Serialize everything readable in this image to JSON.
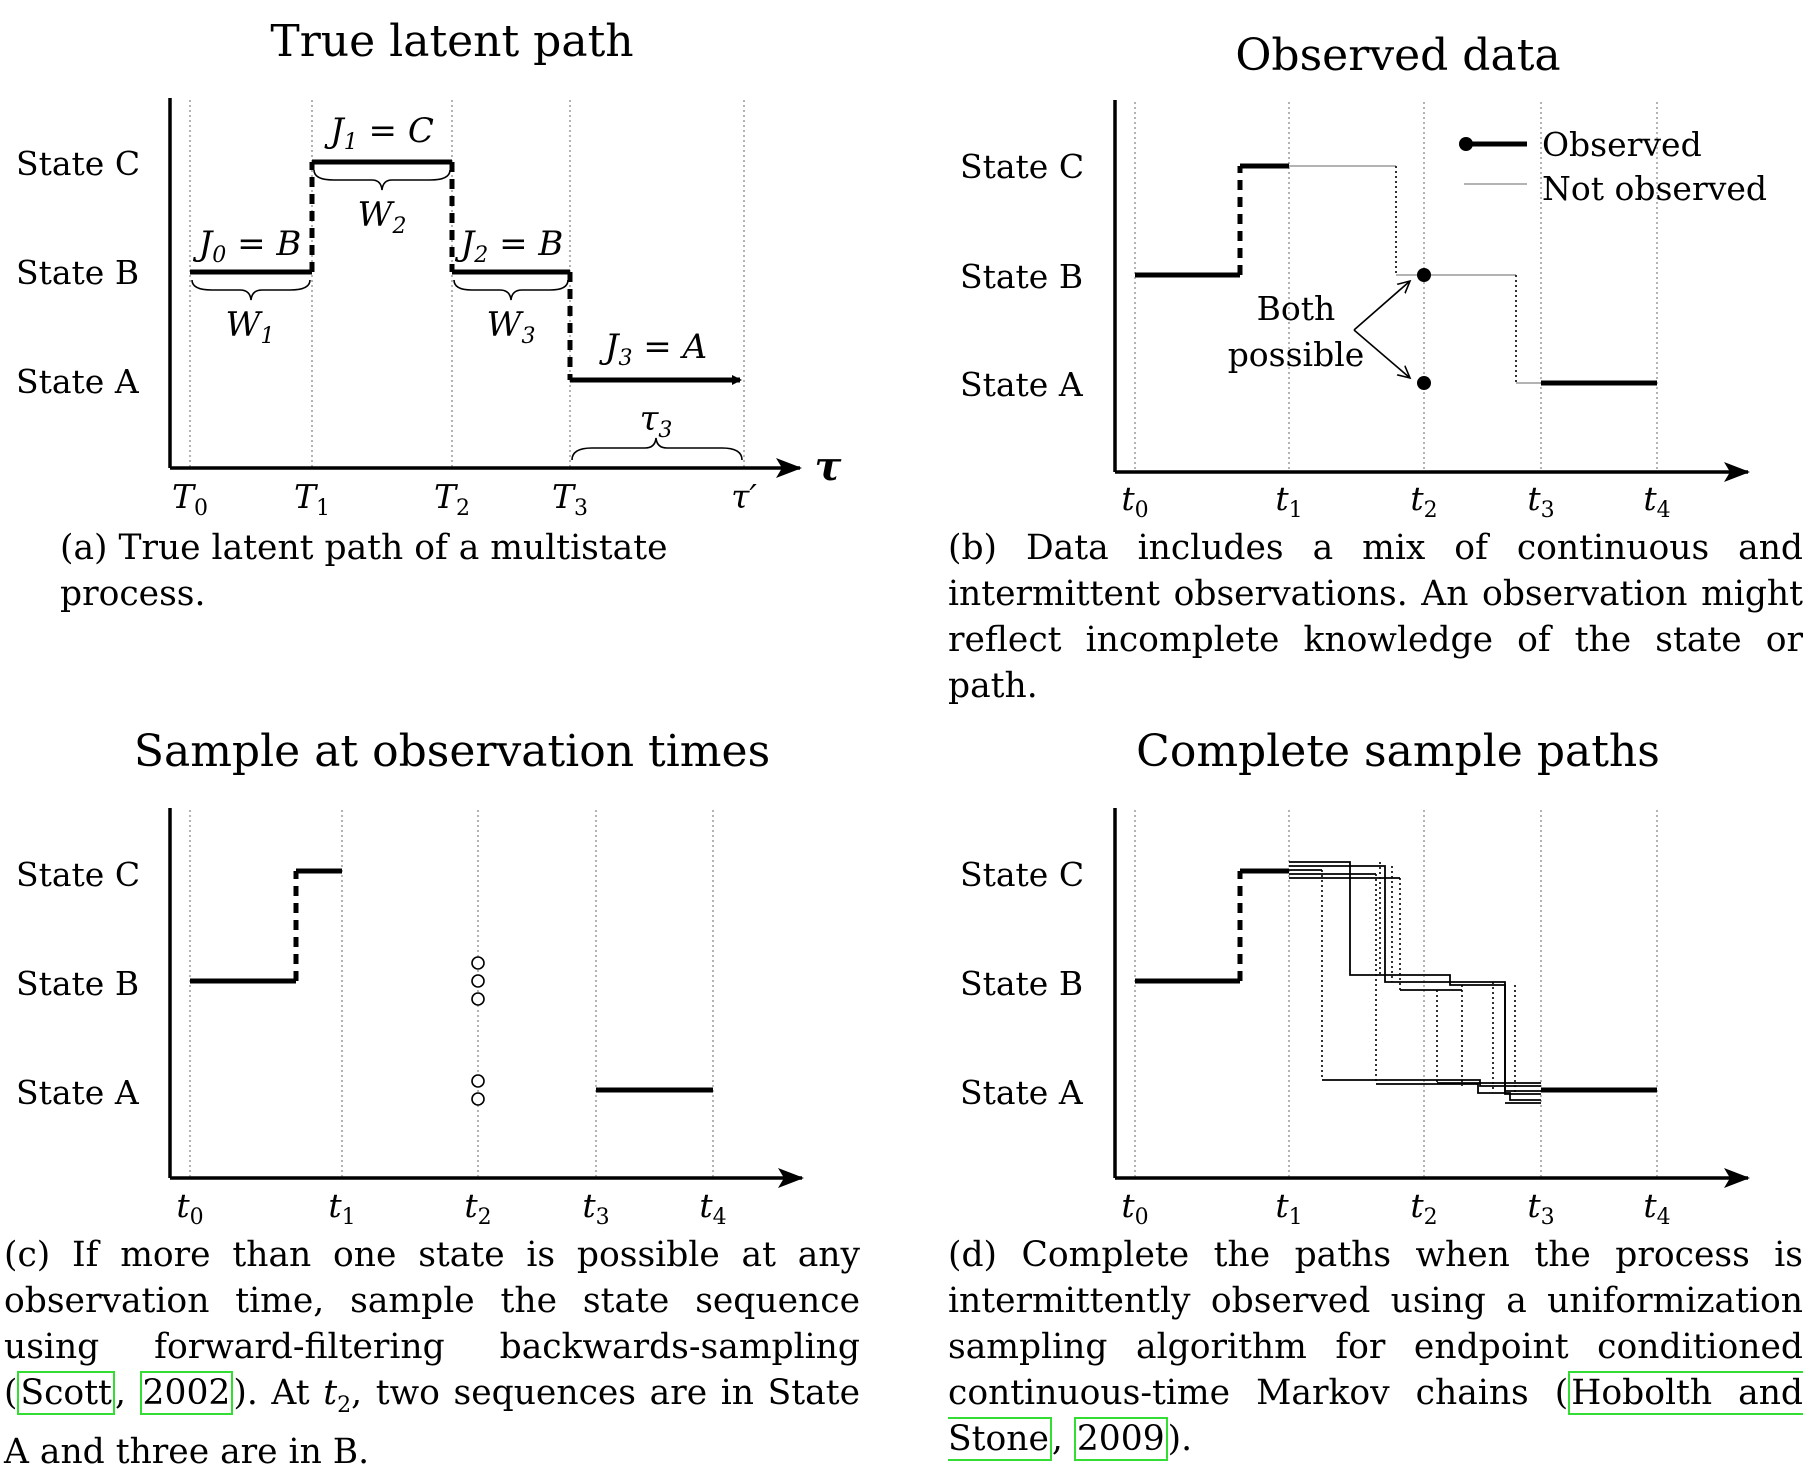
{
  "panel_a": {
    "title": "True latent path",
    "states": [
      "State C",
      "State B",
      "State A"
    ],
    "ticks": [
      "T0",
      "T1",
      "T2",
      "T3",
      "τ′"
    ],
    "axis_symbol": "τ",
    "labels": {
      "j0_main": "J",
      "j0_sub": "0",
      "j0_rest": " = B",
      "j1_main": "J",
      "j1_sub": "1",
      "j1_rest": " = C",
      "j2_main": "J",
      "j2_sub": "2",
      "j2_rest": " = B",
      "j3_main": "J",
      "j3_sub": "3",
      "j3_rest": " = A",
      "w1_main": "W",
      "w1_sub": "1",
      "w2_main": "W",
      "w2_sub": "2",
      "w3_main": "W",
      "w3_sub": "3",
      "tau3_main": "τ",
      "tau3_sub": "3"
    },
    "caption": "(a) True latent path of a multistate process."
  },
  "panel_b": {
    "title": "Observed data",
    "states": [
      "State C",
      "State B",
      "State A"
    ],
    "ticks": [
      "t0",
      "t1",
      "t2",
      "t3",
      "t4"
    ],
    "legend": {
      "observed": "Observed",
      "not_observed": "Not observed"
    },
    "annotation": [
      "Both",
      "possible"
    ],
    "caption": "(b) Data includes a mix of continuous and intermittent observations. An observation might reflect incomplete knowledge of the state or path."
  },
  "panel_c": {
    "title": "Sample at observation times",
    "states": [
      "State C",
      "State B",
      "State A"
    ],
    "ticks": [
      "t0",
      "t1",
      "t2",
      "t3",
      "t4"
    ],
    "samples_at_t2": {
      "State B": 3,
      "State A": 2
    },
    "caption_pre": "(c) If more than one state is possible at any observation time, sample the state sequence using forward-filtering backwards-sampling (",
    "cite_author": "Scott",
    "cite_sep": ", ",
    "cite_year": "2002",
    "caption_mid": "). At ",
    "caption_var": "t",
    "caption_sub": "2",
    "caption_post": ", two sequences are in State A and three are in B."
  },
  "panel_d": {
    "title": "Complete sample paths",
    "states": [
      "State C",
      "State B",
      "State A"
    ],
    "ticks": [
      "t0",
      "t1",
      "t2",
      "t3",
      "t4"
    ],
    "caption_pre": "(d) Complete the paths when the process is intermittently observed using a uniformization sampling algorithm for endpoint conditioned continuous-time Markov chains (",
    "cite_author": "Hobolth and Stone",
    "cite_sep": ", ",
    "cite_year": "2009",
    "caption_post": ")."
  }
}
